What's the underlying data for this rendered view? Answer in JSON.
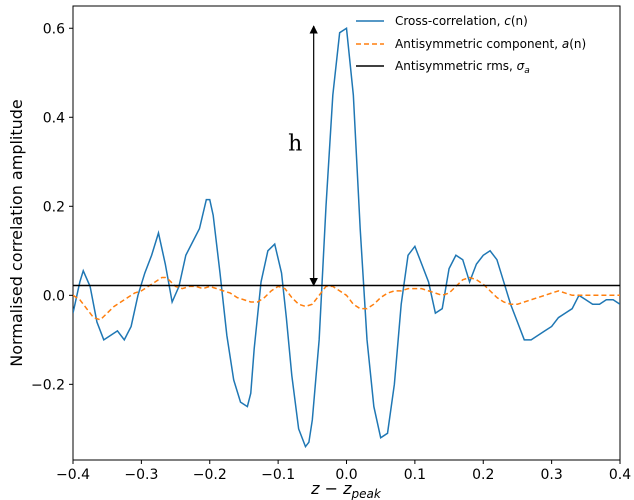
{
  "chart_data": {
    "type": "line",
    "title": "",
    "xlabel": "z − z_peak",
    "xlabel_main": "z − z",
    "xlabel_sub": "peak",
    "ylabel": "Normalised correlation amplitude",
    "xlim": [
      -0.4,
      0.4
    ],
    "ylim": [
      -0.37,
      0.65
    ],
    "xticks": [
      -0.4,
      -0.3,
      -0.2,
      -0.1,
      0.0,
      0.1,
      0.2,
      0.3,
      0.4
    ],
    "xtick_labels": [
      "−0.4",
      "−0.3",
      "−0.2",
      "−0.1",
      "0.0",
      "0.1",
      "0.2",
      "0.3",
      "0.4"
    ],
    "yticks": [
      -0.2,
      0.0,
      0.2,
      0.4,
      0.6
    ],
    "ytick_labels": [
      "−0.2",
      "0.0",
      "0.2",
      "0.4",
      "0.6"
    ],
    "legend_position": "top-right",
    "grid": false,
    "series": [
      {
        "name": "Cross-correlation, c(n)",
        "legend_main": "Cross-correlation, ",
        "legend_var": "c",
        "legend_tail": "(n)",
        "color": "#1f77b4",
        "style": "solid",
        "x": [
          -0.4,
          -0.39,
          -0.385,
          -0.375,
          -0.365,
          -0.355,
          -0.345,
          -0.335,
          -0.325,
          -0.315,
          -0.305,
          -0.295,
          -0.285,
          -0.275,
          -0.265,
          -0.255,
          -0.245,
          -0.235,
          -0.225,
          -0.215,
          -0.205,
          -0.2,
          -0.195,
          -0.185,
          -0.175,
          -0.165,
          -0.155,
          -0.145,
          -0.14,
          -0.135,
          -0.125,
          -0.115,
          -0.105,
          -0.095,
          -0.088,
          -0.08,
          -0.07,
          -0.06,
          -0.055,
          -0.05,
          -0.04,
          -0.03,
          -0.02,
          -0.01,
          0.0,
          0.01,
          0.02,
          0.03,
          0.04,
          0.05,
          0.06,
          0.07,
          0.08,
          0.09,
          0.1,
          0.11,
          0.12,
          0.13,
          0.14,
          0.15,
          0.16,
          0.17,
          0.18,
          0.19,
          0.2,
          0.21,
          0.22,
          0.23,
          0.24,
          0.25,
          0.26,
          0.27,
          0.28,
          0.29,
          0.3,
          0.31,
          0.32,
          0.33,
          0.34,
          0.35,
          0.36,
          0.37,
          0.38,
          0.39,
          0.4
        ],
        "y": [
          -0.04,
          0.03,
          0.055,
          0.02,
          -0.06,
          -0.1,
          -0.09,
          -0.08,
          -0.1,
          -0.07,
          0.0,
          0.05,
          0.09,
          0.14,
          0.07,
          -0.015,
          0.02,
          0.09,
          0.12,
          0.15,
          0.215,
          0.215,
          0.18,
          0.05,
          -0.09,
          -0.19,
          -0.24,
          -0.25,
          -0.22,
          -0.12,
          0.03,
          0.1,
          0.115,
          0.05,
          -0.05,
          -0.18,
          -0.3,
          -0.34,
          -0.33,
          -0.28,
          -0.1,
          0.2,
          0.45,
          0.59,
          0.6,
          0.45,
          0.15,
          -0.1,
          -0.25,
          -0.32,
          -0.31,
          -0.2,
          -0.02,
          0.09,
          0.11,
          0.07,
          0.03,
          -0.04,
          -0.03,
          0.06,
          0.09,
          0.08,
          0.03,
          0.07,
          0.09,
          0.1,
          0.08,
          0.03,
          -0.02,
          -0.06,
          -0.1,
          -0.1,
          -0.09,
          -0.08,
          -0.07,
          -0.05,
          -0.04,
          -0.03,
          0.0,
          -0.01,
          -0.02,
          -0.02,
          -0.01,
          -0.01,
          -0.02
        ]
      },
      {
        "name": "Antisymmetric component, a(n)",
        "legend_main": "Antisymmetric component, ",
        "legend_var": "a",
        "legend_tail": "(n)",
        "color": "#ff7f0e",
        "style": "dashed",
        "x": [
          -0.4,
          -0.39,
          -0.38,
          -0.37,
          -0.36,
          -0.35,
          -0.34,
          -0.33,
          -0.32,
          -0.31,
          -0.3,
          -0.29,
          -0.28,
          -0.27,
          -0.265,
          -0.26,
          -0.25,
          -0.24,
          -0.23,
          -0.22,
          -0.21,
          -0.2,
          -0.19,
          -0.18,
          -0.17,
          -0.16,
          -0.15,
          -0.14,
          -0.13,
          -0.12,
          -0.11,
          -0.1,
          -0.09,
          -0.08,
          -0.07,
          -0.06,
          -0.05,
          -0.04,
          -0.03,
          -0.02,
          -0.01,
          0.0,
          0.01,
          0.02,
          0.03,
          0.04,
          0.05,
          0.06,
          0.07,
          0.08,
          0.09,
          0.1,
          0.11,
          0.12,
          0.13,
          0.14,
          0.15,
          0.16,
          0.17,
          0.18,
          0.19,
          0.2,
          0.21,
          0.22,
          0.23,
          0.24,
          0.25,
          0.26,
          0.27,
          0.28,
          0.29,
          0.3,
          0.31,
          0.32,
          0.33,
          0.34,
          0.35,
          0.36,
          0.37,
          0.38,
          0.39,
          0.4
        ],
        "y": [
          0.0,
          -0.01,
          -0.03,
          -0.05,
          -0.055,
          -0.04,
          -0.025,
          -0.015,
          -0.005,
          0.005,
          0.01,
          0.02,
          0.03,
          0.04,
          0.04,
          0.035,
          0.02,
          0.015,
          0.02,
          0.02,
          0.015,
          0.02,
          0.015,
          0.01,
          0.005,
          -0.005,
          -0.01,
          -0.015,
          -0.015,
          -0.005,
          0.01,
          0.02,
          0.015,
          -0.005,
          -0.02,
          -0.025,
          -0.02,
          0.0,
          0.02,
          0.02,
          0.01,
          0.0,
          -0.02,
          -0.03,
          -0.03,
          -0.02,
          -0.005,
          0.005,
          0.01,
          0.01,
          0.015,
          0.015,
          0.015,
          0.01,
          0.005,
          0.0,
          0.005,
          0.02,
          0.035,
          0.04,
          0.035,
          0.025,
          0.01,
          -0.005,
          -0.015,
          -0.02,
          -0.02,
          -0.015,
          -0.01,
          -0.005,
          0.0,
          0.005,
          0.01,
          0.005,
          0.0,
          0.0,
          0.0,
          0.0,
          0.0,
          0.0,
          0.0,
          0.0
        ]
      },
      {
        "name": "Antisymmetric rms, σ_a",
        "legend_main": "Antisymmetric rms, ",
        "legend_var": "σ",
        "legend_sub": "a",
        "color": "#000000",
        "style": "solid",
        "constant": 0.022
      }
    ],
    "annotations": [
      {
        "text": "h",
        "type": "double-arrow",
        "x": -0.048,
        "y_start": 0.022,
        "y_end": 0.605,
        "label_x": -0.075,
        "label_y": 0.325
      }
    ]
  }
}
